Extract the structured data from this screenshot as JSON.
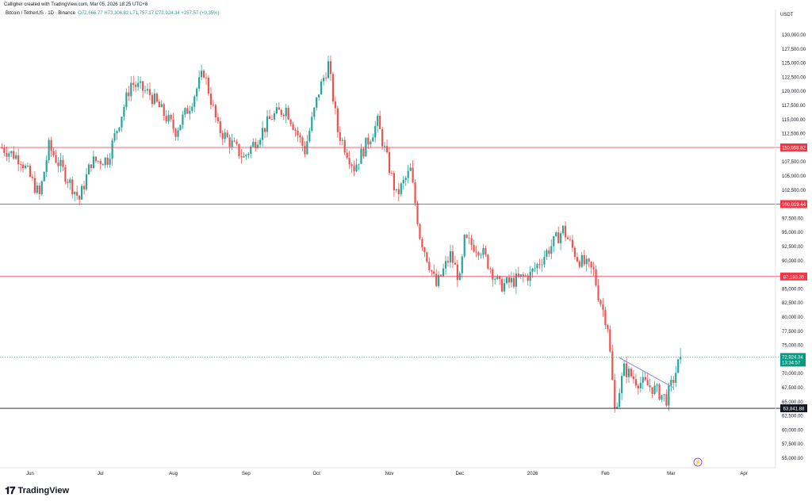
{
  "header": {
    "created_by": "Calligher created with TradingView.com, Mar 05, 2026 18:25 UTC+8"
  },
  "legend": {
    "symbol": "Bitcoin / TetherUS · 1D · Binance",
    "open": "O72,666.77",
    "high": "H73,306.82",
    "low": "L71,757.17",
    "close": "C72,924.34",
    "change": "+257.57 (+0.35%)"
  },
  "currency": "USDT",
  "footer": {
    "logo_icon": "tradingview-logo-icon",
    "brand": "TradingView"
  },
  "colors": {
    "up": "#26a69a",
    "down": "#ef5350",
    "level": "#f23645",
    "support": "#131722",
    "trend": "#7b86d6",
    "price": "#089981"
  },
  "chart_data": {
    "type": "candlestick",
    "y_ticks": [
      "130,000.00",
      "127,500.00",
      "125,000.00",
      "122,500.00",
      "120,000.00",
      "117,500.00",
      "115,000.00",
      "112,500.00",
      "107,500.00",
      "105,000.00",
      "102,500.00",
      "97,500.00",
      "95,000.00",
      "92,500.00",
      "90,000.00",
      "85,000.00",
      "82,500.00",
      "80,000.00",
      "77,500.00",
      "75,000.00",
      "70,000.00",
      "67,500.00",
      "65,000.00",
      "62,500.00",
      "60,000.00",
      "57,500.00",
      "55,000.00"
    ],
    "x_ticks": [
      "Jun",
      "Jul",
      "Aug",
      "Sep",
      "Oct",
      "Nov",
      "Dec",
      "2026",
      "Feb",
      "Mar",
      "Apr"
    ],
    "ylim": [
      54000,
      132000
    ],
    "horizontal_levels": [
      {
        "value": 110058.82,
        "label": "110,058.82",
        "kind": "resistance"
      },
      {
        "value": 100019.44,
        "label": "100,019.44",
        "kind": "resistance"
      },
      {
        "value": 87193.35,
        "label": "87,193.35",
        "kind": "resistance"
      },
      {
        "value": 63841.88,
        "label": "63,841.88",
        "kind": "support"
      }
    ],
    "last_price": {
      "value": 72924.34,
      "label": "72,924.34",
      "countdown": "13:34:57"
    },
    "trendline": {
      "from": {
        "date": "2026-02-07",
        "value": 72800
      },
      "to": {
        "date": "2026-03-02",
        "value": 67500
      }
    },
    "series": [
      {
        "date": "2025-05-20",
        "close": 110000
      },
      {
        "date": "2025-05-22",
        "close": 109500
      },
      {
        "date": "2025-05-28",
        "close": 108000
      },
      {
        "date": "2025-06-05",
        "close": 101500
      },
      {
        "date": "2025-06-09",
        "close": 110200
      },
      {
        "date": "2025-06-17",
        "close": 104500
      },
      {
        "date": "2025-06-22",
        "close": 100900
      },
      {
        "date": "2025-06-27",
        "close": 107500
      },
      {
        "date": "2025-07-04",
        "close": 108000
      },
      {
        "date": "2025-07-10",
        "close": 116000
      },
      {
        "date": "2025-07-14",
        "close": 121500
      },
      {
        "date": "2025-07-22",
        "close": 119500
      },
      {
        "date": "2025-08-02",
        "close": 113000
      },
      {
        "date": "2025-08-08",
        "close": 117500
      },
      {
        "date": "2025-08-14",
        "close": 123500
      },
      {
        "date": "2025-08-20",
        "close": 113500
      },
      {
        "date": "2025-08-31",
        "close": 108200
      },
      {
        "date": "2025-09-12",
        "close": 115500
      },
      {
        "date": "2025-09-18",
        "close": 117000
      },
      {
        "date": "2025-09-26",
        "close": 109500
      },
      {
        "date": "2025-10-02",
        "close": 120000
      },
      {
        "date": "2025-10-06",
        "close": 124800
      },
      {
        "date": "2025-10-10",
        "close": 113000
      },
      {
        "date": "2025-10-17",
        "close": 106500
      },
      {
        "date": "2025-10-27",
        "close": 114500
      },
      {
        "date": "2025-11-04",
        "close": 101500
      },
      {
        "date": "2025-11-10",
        "close": 106000
      },
      {
        "date": "2025-11-14",
        "close": 94500
      },
      {
        "date": "2025-11-21",
        "close": 85500
      },
      {
        "date": "2025-11-27",
        "close": 91000
      },
      {
        "date": "2025-12-01",
        "close": 86500
      },
      {
        "date": "2025-12-03",
        "close": 93500
      },
      {
        "date": "2025-12-10",
        "close": 92000
      },
      {
        "date": "2025-12-18",
        "close": 85500
      },
      {
        "date": "2025-12-31",
        "close": 87500
      },
      {
        "date": "2026-01-14",
        "close": 95500
      },
      {
        "date": "2026-01-20",
        "close": 90500
      },
      {
        "date": "2026-01-27",
        "close": 88000
      },
      {
        "date": "2026-01-29",
        "close": 84000
      },
      {
        "date": "2026-02-02",
        "close": 78500
      },
      {
        "date": "2026-02-05",
        "close": 63500
      },
      {
        "date": "2026-02-09",
        "close": 70800
      },
      {
        "date": "2026-02-14",
        "close": 68800
      },
      {
        "date": "2026-02-21",
        "close": 67500
      },
      {
        "date": "2026-02-27",
        "close": 65500
      },
      {
        "date": "2026-03-02",
        "close": 69000
      },
      {
        "date": "2026-03-05",
        "close": 72924.34
      }
    ]
  }
}
